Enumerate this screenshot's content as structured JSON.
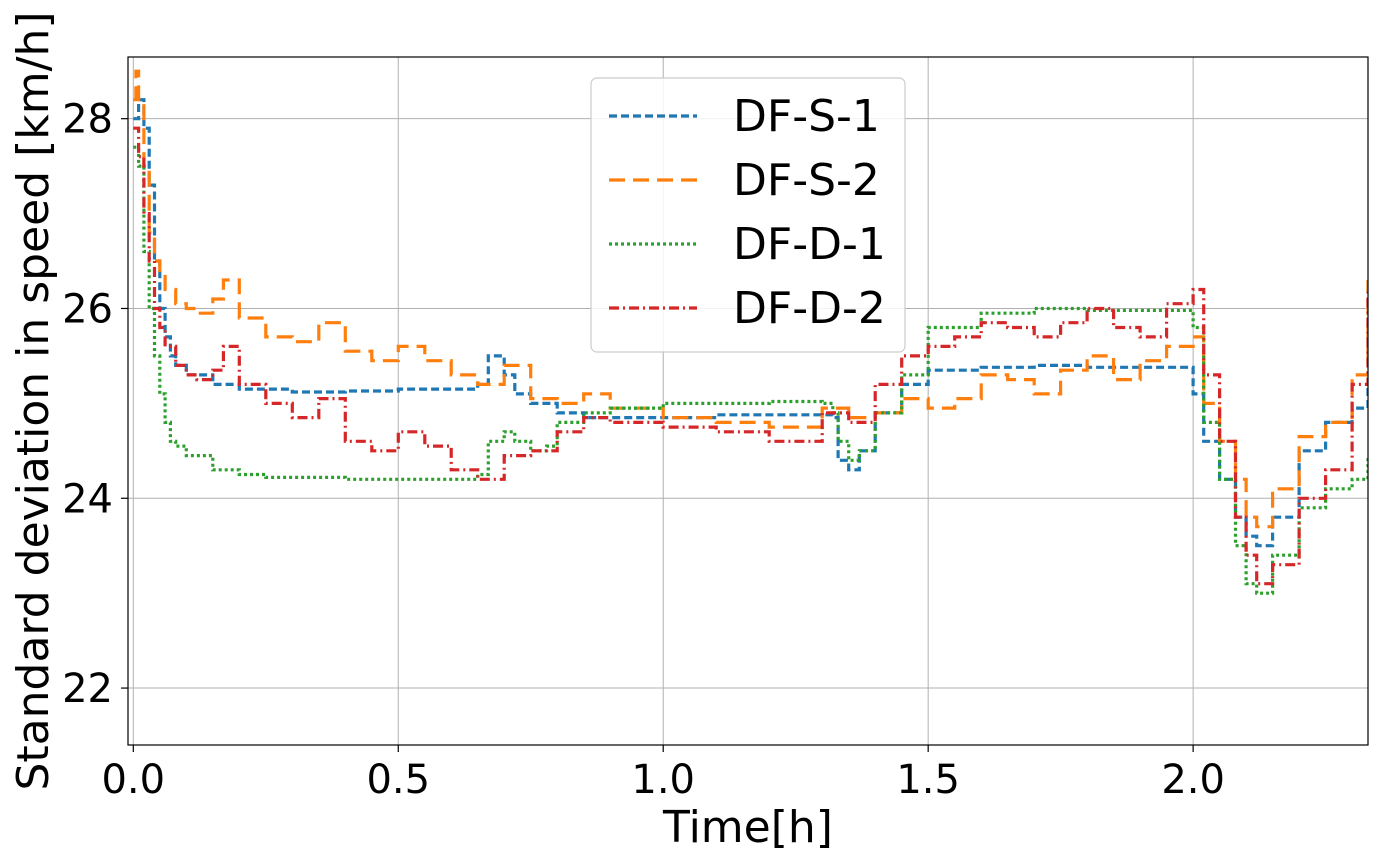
{
  "chart_data": {
    "type": "line",
    "title": "",
    "xlabel": "Time[h]",
    "ylabel": "Standard deviation in speed [km/h]",
    "xlim": [
      -0.01,
      2.33
    ],
    "ylim": [
      21.4,
      28.65
    ],
    "xticks": [
      0.0,
      0.5,
      1.0,
      1.5,
      2.0
    ],
    "xtick_labels": [
      "0.0",
      "0.5",
      "1.0",
      "1.5",
      "2.0"
    ],
    "yticks": [
      22,
      24,
      26,
      28
    ],
    "ytick_labels": [
      "22",
      "24",
      "26",
      "28"
    ],
    "grid": true,
    "legend_position": "upper-center",
    "series": [
      {
        "name": "DF-S-1",
        "color": "#1f77b4",
        "dash": "8 4",
        "x": [
          0.0,
          0.01,
          0.02,
          0.03,
          0.04,
          0.05,
          0.06,
          0.07,
          0.08,
          0.1,
          0.15,
          0.2,
          0.3,
          0.4,
          0.5,
          0.6,
          0.65,
          0.67,
          0.7,
          0.72,
          0.75,
          0.8,
          0.85,
          0.9,
          1.0,
          1.1,
          1.2,
          1.3,
          1.32,
          1.33,
          1.35,
          1.37,
          1.4,
          1.45,
          1.5,
          1.6,
          1.7,
          1.8,
          1.9,
          1.99,
          2.0,
          2.02,
          2.05,
          2.08,
          2.1,
          2.12,
          2.15,
          2.2,
          2.25,
          2.3,
          2.33
        ],
        "y": [
          28.0,
          28.2,
          27.9,
          27.3,
          26.5,
          26.0,
          25.7,
          25.5,
          25.4,
          25.3,
          25.2,
          25.15,
          25.12,
          25.13,
          25.15,
          25.15,
          25.2,
          25.5,
          25.3,
          25.1,
          25.0,
          24.9,
          24.85,
          24.85,
          24.85,
          24.88,
          24.88,
          24.88,
          24.85,
          24.4,
          24.3,
          24.5,
          24.9,
          25.2,
          25.35,
          25.38,
          25.4,
          25.38,
          25.38,
          25.38,
          25.1,
          24.6,
          24.2,
          23.8,
          23.6,
          23.5,
          23.8,
          24.5,
          24.8,
          24.95,
          25.2
        ]
      },
      {
        "name": "DF-S-2",
        "color": "#ff7f0e",
        "dash": "16 8",
        "x": [
          0.0,
          0.005,
          0.01,
          0.02,
          0.03,
          0.04,
          0.05,
          0.06,
          0.08,
          0.1,
          0.12,
          0.15,
          0.17,
          0.2,
          0.25,
          0.3,
          0.35,
          0.4,
          0.45,
          0.5,
          0.55,
          0.6,
          0.65,
          0.7,
          0.75,
          0.8,
          0.85,
          0.9,
          1.0,
          1.1,
          1.2,
          1.3,
          1.35,
          1.4,
          1.45,
          1.5,
          1.55,
          1.6,
          1.65,
          1.7,
          1.75,
          1.8,
          1.85,
          1.9,
          1.95,
          2.0,
          2.02,
          2.05,
          2.08,
          2.1,
          2.12,
          2.15,
          2.2,
          2.25,
          2.3,
          2.33
        ],
        "y": [
          28.2,
          28.5,
          28.2,
          27.5,
          26.8,
          26.5,
          26.4,
          26.2,
          26.05,
          26.0,
          25.95,
          26.1,
          26.3,
          25.9,
          25.7,
          25.65,
          25.85,
          25.55,
          25.45,
          25.6,
          25.45,
          25.3,
          25.2,
          25.4,
          25.05,
          25.0,
          25.1,
          24.95,
          24.85,
          24.8,
          24.75,
          24.95,
          24.85,
          24.9,
          25.05,
          24.95,
          25.05,
          25.3,
          25.25,
          25.1,
          25.35,
          25.5,
          25.25,
          25.45,
          25.6,
          25.7,
          25.0,
          24.6,
          24.2,
          23.8,
          23.7,
          24.1,
          24.65,
          24.8,
          25.3,
          26.3
        ]
      },
      {
        "name": "DF-D-1",
        "color": "#2ca02c",
        "dash": "3 3",
        "x": [
          0.0,
          0.01,
          0.02,
          0.03,
          0.04,
          0.05,
          0.06,
          0.07,
          0.08,
          0.1,
          0.15,
          0.2,
          0.25,
          0.3,
          0.4,
          0.5,
          0.6,
          0.65,
          0.67,
          0.7,
          0.72,
          0.75,
          0.78,
          0.8,
          0.85,
          0.9,
          1.0,
          1.1,
          1.2,
          1.3,
          1.32,
          1.33,
          1.35,
          1.37,
          1.4,
          1.45,
          1.5,
          1.6,
          1.7,
          1.8,
          1.9,
          1.99,
          2.0,
          2.02,
          2.05,
          2.08,
          2.1,
          2.12,
          2.15,
          2.2,
          2.25,
          2.3,
          2.33
        ],
        "y": [
          27.7,
          27.5,
          26.6,
          26.0,
          25.5,
          25.1,
          24.8,
          24.6,
          24.55,
          24.45,
          24.3,
          24.25,
          24.22,
          24.22,
          24.2,
          24.2,
          24.2,
          24.25,
          24.6,
          24.7,
          24.6,
          24.5,
          24.55,
          24.8,
          24.9,
          24.95,
          25.0,
          25.0,
          25.02,
          25.0,
          24.9,
          24.6,
          24.4,
          24.5,
          24.9,
          25.3,
          25.8,
          25.95,
          26.0,
          25.98,
          25.98,
          25.98,
          25.8,
          24.8,
          24.2,
          23.5,
          23.1,
          23.0,
          23.4,
          23.9,
          24.1,
          24.2,
          24.45
        ]
      },
      {
        "name": "DF-D-2",
        "color": "#d62728",
        "dash": "10 4 2 4",
        "x": [
          0.0,
          0.01,
          0.02,
          0.03,
          0.04,
          0.05,
          0.06,
          0.08,
          0.1,
          0.12,
          0.15,
          0.17,
          0.2,
          0.25,
          0.3,
          0.35,
          0.4,
          0.45,
          0.5,
          0.55,
          0.6,
          0.65,
          0.7,
          0.75,
          0.8,
          0.85,
          0.9,
          1.0,
          1.1,
          1.2,
          1.3,
          1.35,
          1.4,
          1.45,
          1.5,
          1.55,
          1.6,
          1.65,
          1.7,
          1.75,
          1.8,
          1.85,
          1.9,
          1.95,
          2.0,
          2.02,
          2.05,
          2.08,
          2.1,
          2.12,
          2.15,
          2.2,
          2.25,
          2.3,
          2.33
        ],
        "y": [
          27.9,
          27.6,
          27.0,
          26.5,
          26.0,
          25.8,
          25.6,
          25.4,
          25.3,
          25.25,
          25.35,
          25.6,
          25.2,
          25.0,
          24.85,
          25.05,
          24.6,
          24.5,
          24.7,
          24.55,
          24.3,
          24.2,
          24.45,
          24.5,
          24.7,
          24.85,
          24.8,
          24.75,
          24.7,
          24.6,
          24.9,
          24.8,
          25.2,
          25.5,
          25.6,
          25.7,
          25.85,
          25.8,
          25.7,
          25.85,
          26.0,
          25.8,
          25.7,
          26.05,
          26.2,
          25.3,
          24.6,
          23.8,
          23.4,
          23.1,
          23.3,
          24.0,
          24.3,
          25.2,
          26.2
        ]
      }
    ]
  }
}
